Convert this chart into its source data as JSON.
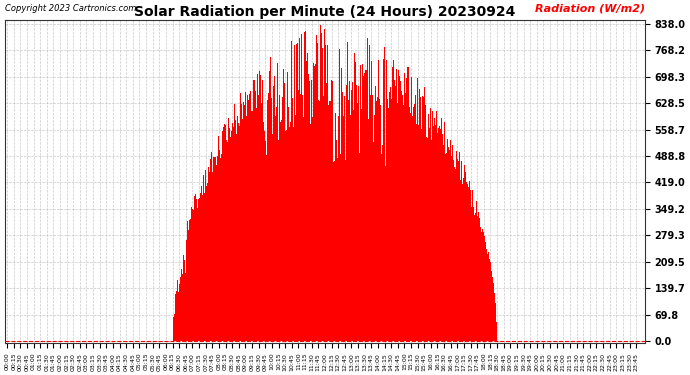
{
  "title": "Solar Radiation per Minute (24 Hours) 20230924",
  "ylabel": "Radiation (W/m2)",
  "copyright": "Copyright 2023 Cartronics.com",
  "bar_color": "#ff0000",
  "bg_color": "#ffffff",
  "grid_color": "#bbbbbb",
  "ytick_values": [
    0.0,
    69.8,
    139.7,
    209.5,
    279.3,
    349.2,
    419.0,
    488.8,
    558.7,
    628.5,
    698.3,
    768.2,
    838.0
  ],
  "ymax": 838.0,
  "ymin": 0.0,
  "total_minutes": 1440,
  "sunrise_minute": 375,
  "sunset_minute": 1110,
  "peak_minute": 742,
  "peak_value": 838.0
}
